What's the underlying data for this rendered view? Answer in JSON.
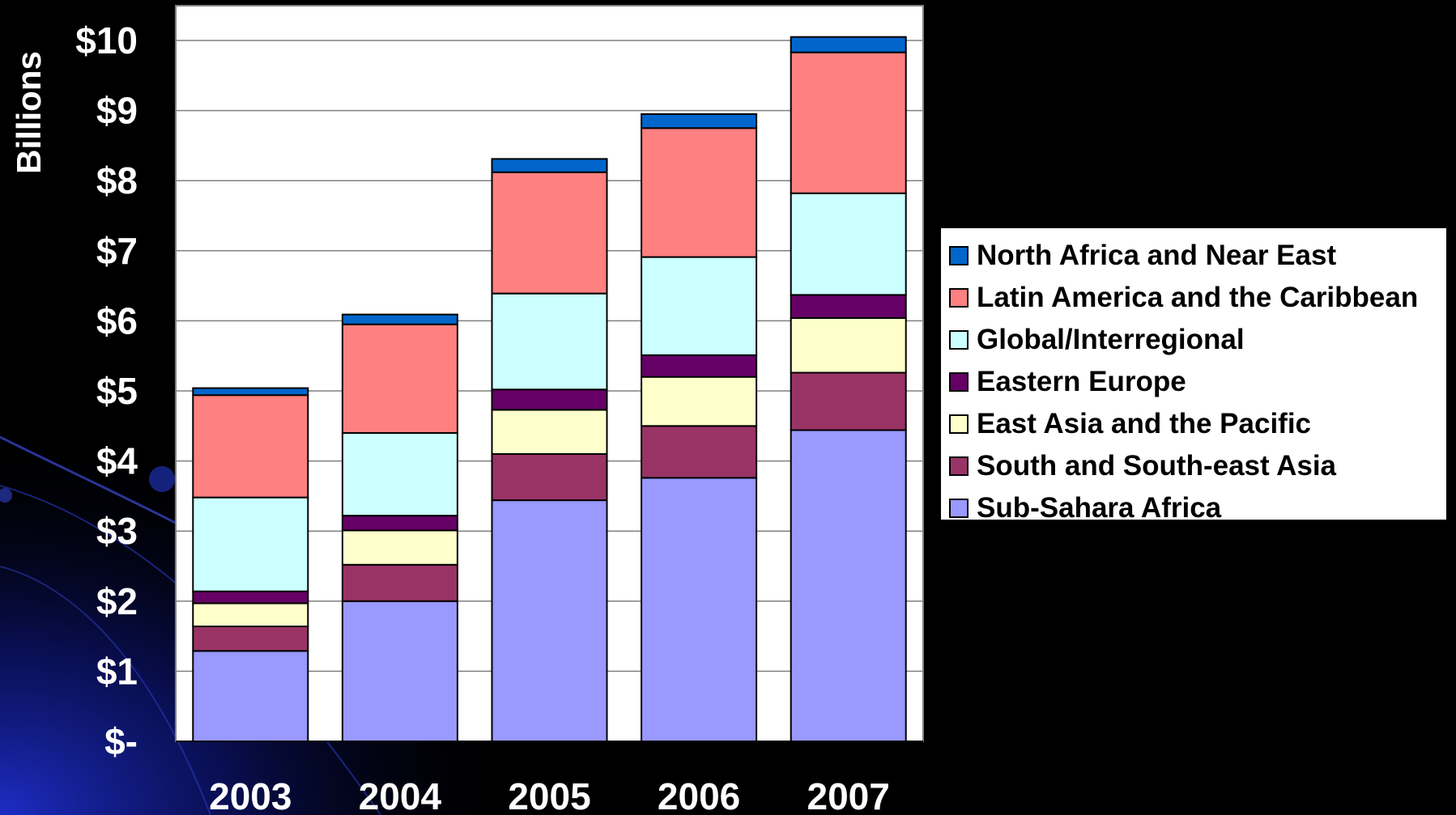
{
  "colors": {
    "background": "#000000",
    "plot_background": "#ffffff",
    "gridline": "#808080"
  },
  "chart_data": {
    "type": "bar",
    "stacked": true,
    "ylabel": "Billions",
    "xlabel": "",
    "ylim": [
      0,
      10.5
    ],
    "yticks": [
      0,
      1,
      2,
      3,
      4,
      5,
      6,
      7,
      8,
      9,
      10
    ],
    "ytick_labels": [
      "$-",
      "$1",
      "$2",
      "$3",
      "$4",
      "$5",
      "$6",
      "$7",
      "$8",
      "$9",
      "$10"
    ],
    "categories": [
      "2003",
      "2004",
      "2005",
      "2006",
      "2007"
    ],
    "grid": true,
    "legend_position": "right",
    "series": [
      {
        "name": "Sub-Sahara Africa",
        "color": "#9999ff",
        "values": [
          1.29,
          2.0,
          3.44,
          3.76,
          4.44
        ]
      },
      {
        "name": "South and South-east Asia",
        "color": "#993366",
        "values": [
          0.35,
          0.52,
          0.66,
          0.74,
          0.82
        ]
      },
      {
        "name": "East Asia and the Pacific",
        "color": "#ffffcc",
        "values": [
          0.33,
          0.49,
          0.63,
          0.7,
          0.78
        ]
      },
      {
        "name": "Eastern Europe",
        "color": "#660066",
        "values": [
          0.17,
          0.21,
          0.29,
          0.31,
          0.33
        ]
      },
      {
        "name": "Global/Interregional",
        "color": "#ccffff",
        "values": [
          1.34,
          1.18,
          1.37,
          1.4,
          1.45
        ]
      },
      {
        "name": "Latin America and the Caribbean",
        "color": "#ff8080",
        "values": [
          1.46,
          1.55,
          1.73,
          1.84,
          2.01
        ]
      },
      {
        "name": "North Africa and Near East",
        "color": "#0066cc",
        "values": [
          0.1,
          0.14,
          0.19,
          0.2,
          0.22
        ]
      }
    ]
  }
}
